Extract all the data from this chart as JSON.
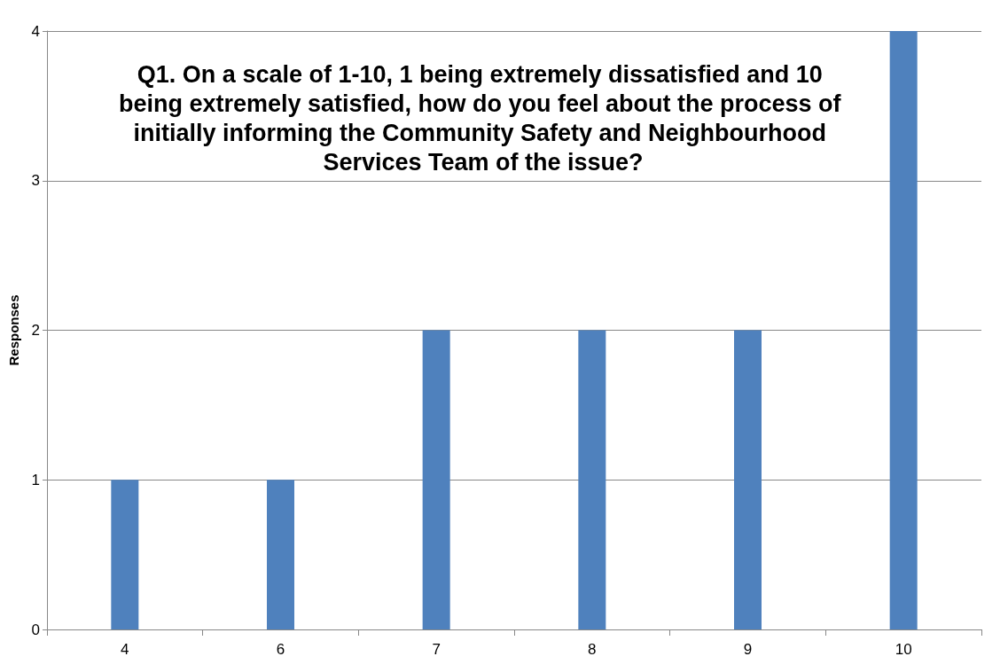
{
  "chart_data": {
    "type": "bar",
    "title": "Q1. On a scale of 1-10, 1 being extremely dissatisfied and 10 being extremely satisfied, how do you feel about the process of initially informing the Community Safety and Neighbourhood Services Team of the issue?",
    "ylabel": "Responses",
    "categories": [
      "4",
      "6",
      "7",
      "8",
      "9",
      "10"
    ],
    "values": [
      1,
      1,
      2,
      2,
      2,
      4
    ],
    "color": "#4f81bd",
    "ylim": [
      0,
      4
    ],
    "yticks": [
      0,
      1,
      2,
      3,
      4
    ],
    "grid": "y"
  }
}
